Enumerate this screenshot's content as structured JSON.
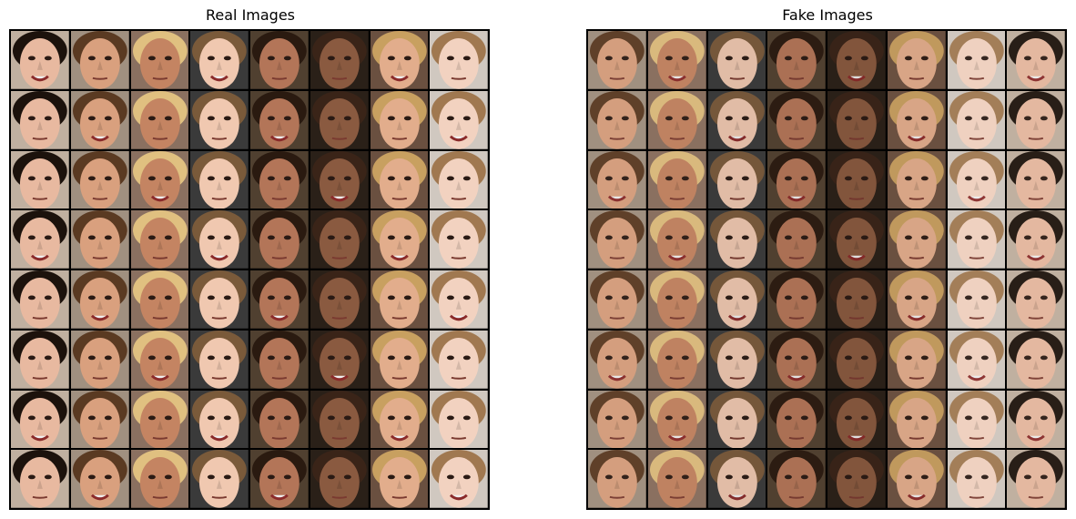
{
  "panels": {
    "real": {
      "title": "Real Images"
    },
    "fake": {
      "title": "Fake Images"
    }
  },
  "grid": {
    "rows": 8,
    "cols": 8
  },
  "palette": {
    "skin": [
      "#e8b9a0",
      "#d9a07e",
      "#c48462",
      "#f0c8b0",
      "#b37558",
      "#8a5a40",
      "#e2ad8c",
      "#f2d2c0"
    ],
    "hair": [
      "#3a2418",
      "#1c120c",
      "#7a5a3a",
      "#c8a060",
      "#5a3a22",
      "#2a1a10",
      "#a07850",
      "#e0c080"
    ],
    "bg": [
      "#6a5040",
      "#3a3a3a",
      "#c0b0a0",
      "#2a2018",
      "#8a7060",
      "#d0c8c0",
      "#504030",
      "#a09080"
    ]
  }
}
